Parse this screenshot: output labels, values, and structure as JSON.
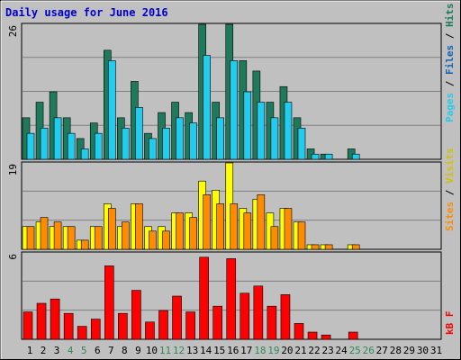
{
  "title": "Daily usage for June 2016",
  "colors": {
    "background": "#c0c0c0",
    "frame": "#ffffff",
    "title": "#0000cc",
    "grid": "#808080",
    "hits": "#1f7a5c",
    "files": "#22ccee",
    "sites": "#ff8c00",
    "visits": "#ffff00",
    "kbytes": "#ff0000",
    "weekend_label": "#2e8b57",
    "weekday_label": "#000000"
  },
  "legends": {
    "pages": "Pages",
    "files": "Files",
    "hits": "Hits",
    "sites": "Sites",
    "visits": "Visits",
    "kbytes": "kB F",
    "separator": " / "
  },
  "chart_data": [
    {
      "type": "bar",
      "name": "hits-files-pages",
      "y_max_label": "26",
      "ylim": [
        0,
        26
      ],
      "categories": [
        "1",
        "2",
        "3",
        "4",
        "5",
        "6",
        "7",
        "8",
        "9",
        "10",
        "11",
        "12",
        "13",
        "14",
        "15",
        "16",
        "17",
        "18",
        "19",
        "20",
        "21",
        "22",
        "23",
        "24",
        "25",
        "26",
        "27",
        "28",
        "29",
        "30",
        "31"
      ],
      "weekend_days": [
        "4",
        "5",
        "11",
        "12",
        "18",
        "19",
        "25",
        "26"
      ],
      "series": [
        {
          "name": "Hits",
          "values": [
            8,
            11,
            13,
            8,
            4,
            7,
            21,
            8,
            15,
            5,
            9,
            11,
            9,
            26,
            11,
            26,
            19,
            17,
            11,
            14,
            8,
            2,
            1,
            0,
            2,
            0,
            0,
            0,
            0,
            0,
            0
          ]
        },
        {
          "name": "Files",
          "values": [
            5,
            6,
            8,
            5,
            2,
            5,
            19,
            6,
            10,
            4,
            6,
            8,
            7,
            20,
            8,
            19,
            13,
            11,
            8,
            11,
            6,
            1,
            1,
            0,
            1,
            0,
            0,
            0,
            0,
            0,
            0
          ]
        },
        {
          "name": "Pages",
          "values": [
            0,
            0,
            0,
            0,
            0,
            0,
            0,
            0,
            0,
            0,
            0,
            0,
            0,
            0,
            0,
            0,
            0,
            0,
            0,
            0,
            0,
            0,
            0,
            0,
            0,
            0,
            0,
            0,
            0,
            0,
            0
          ]
        }
      ]
    },
    {
      "type": "bar",
      "name": "visits-sites",
      "y_max_label": "19",
      "ylim": [
        0,
        19
      ],
      "categories": [
        "1",
        "2",
        "3",
        "4",
        "5",
        "6",
        "7",
        "8",
        "9",
        "10",
        "11",
        "12",
        "13",
        "14",
        "15",
        "16",
        "17",
        "18",
        "19",
        "20",
        "21",
        "22",
        "23",
        "24",
        "25",
        "26",
        "27",
        "28",
        "29",
        "30",
        "31"
      ],
      "series": [
        {
          "name": "Visits",
          "values": [
            5,
            6,
            5,
            5,
            2,
            5,
            10,
            5,
            10,
            5,
            5,
            8,
            8,
            15,
            13,
            19,
            9,
            11,
            8,
            9,
            6,
            1,
            1,
            0,
            1,
            0,
            0,
            0,
            0,
            0,
            0
          ]
        },
        {
          "name": "Sites",
          "values": [
            5,
            7,
            6,
            5,
            2,
            5,
            9,
            6,
            10,
            4,
            4,
            8,
            7,
            12,
            10,
            10,
            8,
            12,
            5,
            9,
            6,
            1,
            1,
            0,
            1,
            0,
            0,
            0,
            0,
            0,
            0
          ]
        }
      ]
    },
    {
      "type": "bar",
      "name": "kbytes",
      "y_max_label": "6",
      "ylim": [
        0,
        6
      ],
      "categories": [
        "1",
        "2",
        "3",
        "4",
        "5",
        "6",
        "7",
        "8",
        "9",
        "10",
        "11",
        "12",
        "13",
        "14",
        "15",
        "16",
        "17",
        "18",
        "19",
        "20",
        "21",
        "22",
        "23",
        "24",
        "25",
        "26",
        "27",
        "28",
        "29",
        "30",
        "31"
      ],
      "series": [
        {
          "name": "kB F",
          "values": [
            1.9,
            2.5,
            2.8,
            1.8,
            0.9,
            1.4,
            5.1,
            1.8,
            3.4,
            1.2,
            2.0,
            3.0,
            1.9,
            5.7,
            2.3,
            5.6,
            3.2,
            3.7,
            2.3,
            3.1,
            1.1,
            0.5,
            0.3,
            0,
            0.5,
            0,
            0,
            0,
            0,
            0,
            0
          ]
        }
      ]
    }
  ]
}
